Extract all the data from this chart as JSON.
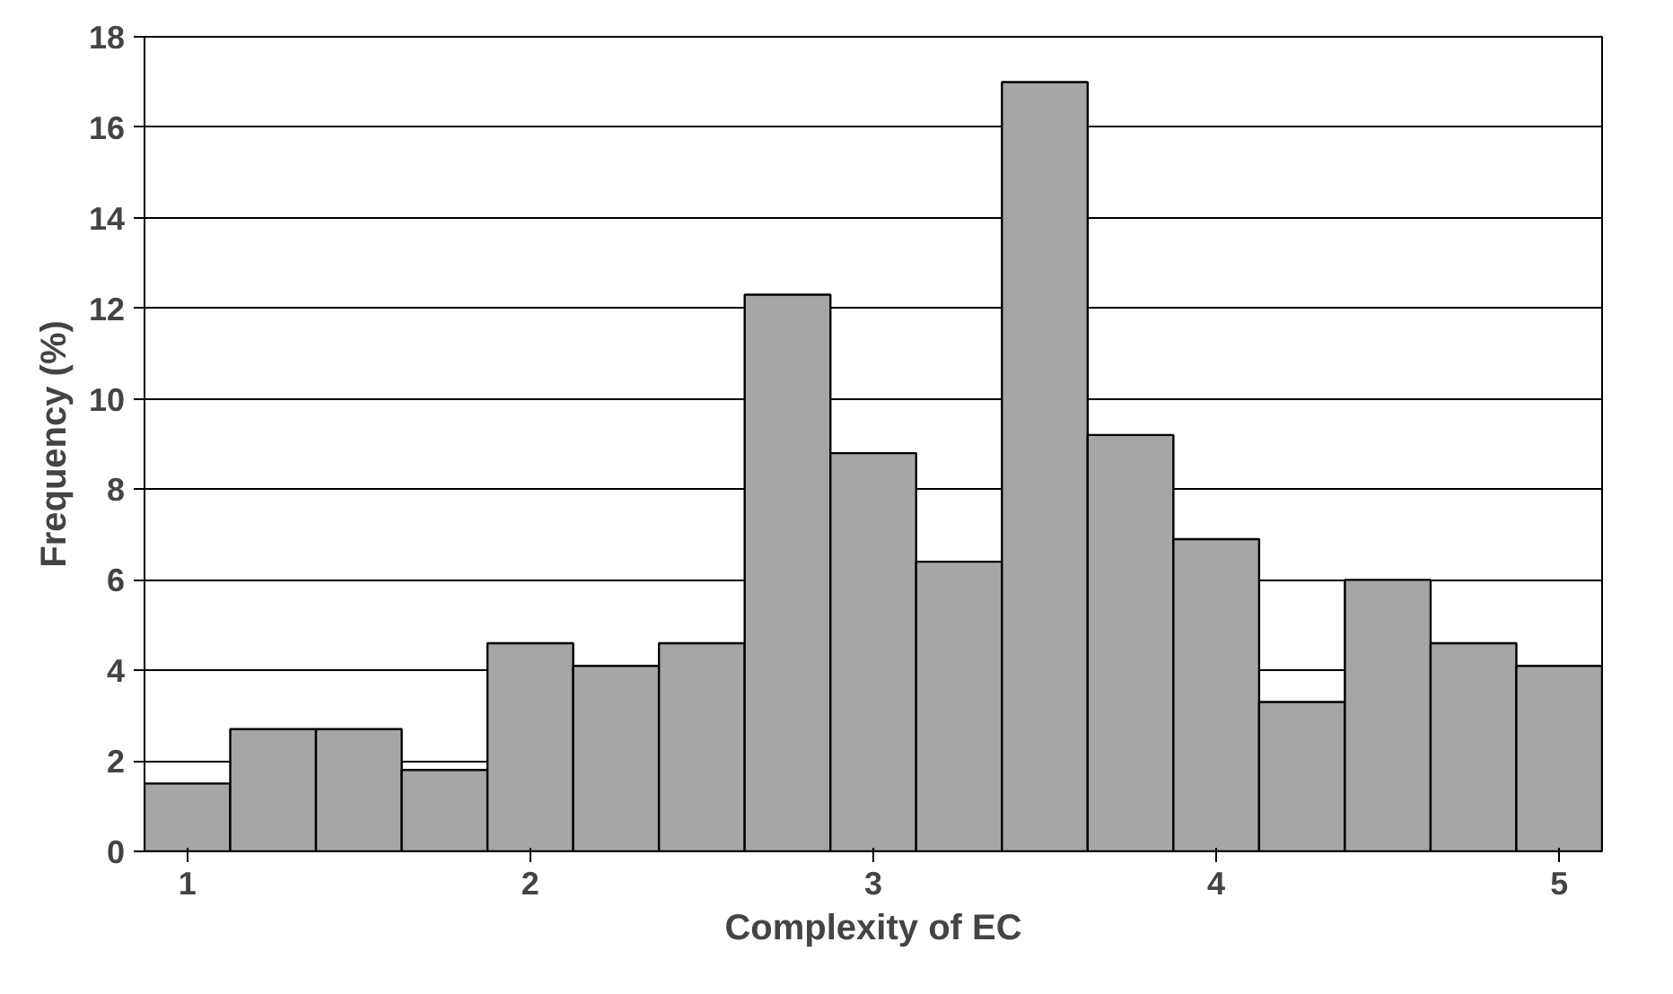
{
  "chart_data": {
    "type": "histogram",
    "xlabel": "Complexity of EC",
    "ylabel": "Frequency (%)",
    "bins": [
      0.875,
      1.125,
      1.375,
      1.625,
      1.875,
      2.125,
      2.375,
      2.625,
      2.875,
      3.125,
      3.375,
      3.625,
      3.875,
      4.125,
      4.375,
      4.625,
      4.875,
      5.125
    ],
    "values": [
      1.5,
      2.7,
      2.7,
      1.8,
      4.6,
      4.1,
      4.6,
      12.3,
      8.8,
      6.4,
      17.0,
      9.2,
      6.9,
      3.3,
      6.0,
      4.6,
      4.1
    ],
    "color": "#a6a6a6",
    "xlim": [
      0.875,
      5.125
    ],
    "xticks": [
      1,
      2,
      3,
      4,
      5
    ],
    "ylim": [
      0,
      18
    ],
    "yticks": [
      0,
      2,
      4,
      6,
      8,
      10,
      12,
      14,
      16,
      18
    ],
    "grid": "y"
  }
}
